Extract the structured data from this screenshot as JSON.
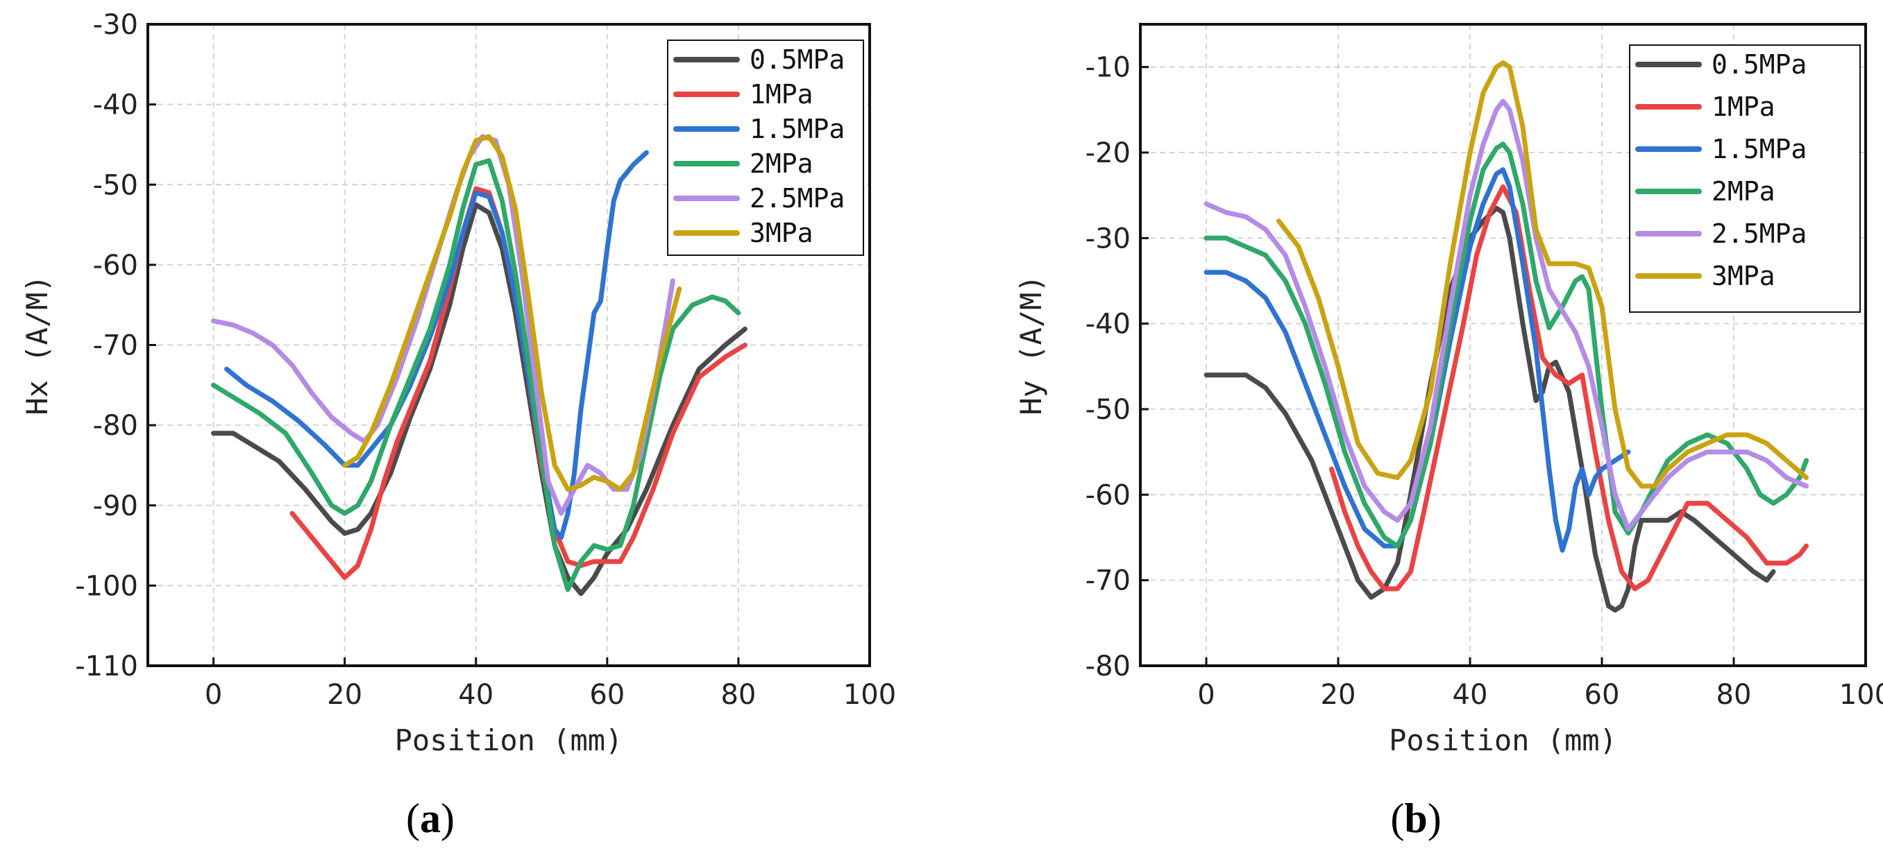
{
  "colors": {
    "0.5MPa": "#4a4a4a",
    "1MPa": "#ea4343",
    "1.5MPa": "#2f73d2",
    "2MPa": "#2fa86a",
    "2.5MPa": "#b48be6",
    "3MPa": "#c9a311"
  },
  "chart_data": [
    {
      "type": "line",
      "panel": "(a)",
      "panel_paren_open": "(",
      "panel_letter": "a",
      "panel_paren_close": ")",
      "xlabel": "Position (mm)",
      "ylabel": "Hx (A/M)",
      "xlim": [
        -10,
        100
      ],
      "ylim": [
        -110,
        -30
      ],
      "xticks": [
        0,
        20,
        40,
        60,
        80,
        100
      ],
      "yticks": [
        -110,
        -100,
        -90,
        -80,
        -70,
        -60,
        -50,
        -40,
        -30
      ],
      "legend_position": "top-right",
      "series": [
        {
          "name": "0.5MPa",
          "color": "#4a4a4a",
          "x": [
            0,
            3,
            6,
            10,
            14,
            18,
            20,
            22,
            24,
            27,
            30,
            33,
            36,
            38,
            40,
            42,
            44,
            46,
            48,
            50,
            52,
            54,
            56,
            58,
            60,
            63,
            66,
            70,
            74,
            78,
            81
          ],
          "y": [
            -81,
            -81,
            -82.5,
            -84.5,
            -88,
            -92,
            -93.5,
            -93,
            -91,
            -86,
            -79,
            -73,
            -65,
            -58,
            -52.5,
            -53.5,
            -58,
            -66,
            -76,
            -86,
            -95,
            -99,
            -101,
            -99,
            -96,
            -93,
            -88,
            -80,
            -73,
            -70,
            -68
          ]
        },
        {
          "name": "1MPa",
          "color": "#ea4343",
          "x": [
            12,
            15,
            18,
            20,
            22,
            24,
            26,
            28,
            30,
            33,
            36,
            38,
            40,
            42,
            44,
            46,
            48,
            50,
            52,
            54,
            56,
            58,
            60,
            62,
            64,
            67,
            70,
            74,
            78,
            81
          ],
          "y": [
            -91,
            -94,
            -97,
            -99,
            -97.5,
            -93,
            -87,
            -82,
            -78,
            -72,
            -63,
            -56,
            -50.5,
            -51,
            -56,
            -64,
            -74,
            -85,
            -93,
            -97,
            -97.5,
            -97,
            -97,
            -97,
            -94,
            -88,
            -81,
            -74,
            -71.5,
            -70
          ]
        },
        {
          "name": "1.5MPa",
          "color": "#2f73d2",
          "x": [
            2,
            5,
            9,
            13,
            17,
            20,
            22,
            24,
            27,
            30,
            33,
            36,
            38,
            40,
            42,
            44,
            46,
            48,
            50,
            52,
            53,
            54,
            55,
            56,
            57,
            58,
            59,
            60,
            61,
            62,
            63,
            64,
            66
          ],
          "y": [
            -73,
            -75,
            -77,
            -79.5,
            -82.5,
            -85,
            -85,
            -83,
            -80,
            -75,
            -69,
            -62,
            -56,
            -51,
            -51.5,
            -56,
            -64,
            -74,
            -84,
            -93,
            -94,
            -91,
            -86,
            -78,
            -72,
            -66,
            -64.5,
            -58,
            -52,
            -49.5,
            -48.5,
            -47.5,
            -46
          ]
        },
        {
          "name": "2MPa",
          "color": "#2fa86a",
          "x": [
            0,
            3,
            7,
            11,
            15,
            18,
            20,
            22,
            24,
            27,
            30,
            33,
            36,
            38,
            40,
            42,
            44,
            46,
            48,
            50,
            52,
            54,
            56,
            58,
            60,
            62,
            64,
            66,
            68,
            70,
            73,
            76,
            78,
            80
          ],
          "y": [
            -75,
            -76.5,
            -78.5,
            -81,
            -86,
            -90,
            -91,
            -90,
            -87,
            -80,
            -74,
            -68,
            -60,
            -53,
            -47.5,
            -47,
            -52,
            -61,
            -72,
            -84,
            -95,
            -100.5,
            -97,
            -95,
            -95.5,
            -95,
            -90,
            -82,
            -74,
            -68,
            -65,
            -64,
            -64.5,
            -66
          ]
        },
        {
          "name": "2.5MPa",
          "color": "#b48be6",
          "x": [
            0,
            3,
            6,
            9,
            12,
            15,
            18,
            21,
            23,
            25,
            28,
            31,
            34,
            37,
            39,
            41,
            43,
            45,
            47,
            49,
            51,
            53,
            55,
            57,
            59,
            61,
            63,
            65,
            67,
            69,
            70
          ],
          "y": [
            -67,
            -67.5,
            -68.5,
            -70,
            -72.5,
            -76,
            -79,
            -81,
            -82,
            -80,
            -74,
            -67,
            -59,
            -51,
            -46.5,
            -44,
            -44.5,
            -50,
            -61,
            -74,
            -87,
            -91,
            -88,
            -85,
            -86,
            -88,
            -88,
            -84,
            -76,
            -67,
            -62
          ]
        },
        {
          "name": "3MPa",
          "color": "#c9a311",
          "x": [
            20,
            22,
            24,
            27,
            30,
            33,
            36,
            38,
            40,
            42,
            44,
            46,
            48,
            50,
            52,
            54,
            56,
            58,
            60,
            62,
            64,
            66,
            68,
            70,
            71
          ],
          "y": [
            -85,
            -84,
            -81,
            -75,
            -68,
            -61,
            -54,
            -48.5,
            -44.5,
            -44,
            -46.5,
            -53,
            -64,
            -76,
            -85,
            -88,
            -87.5,
            -86.5,
            -87,
            -88,
            -86,
            -79,
            -72,
            -66,
            -63
          ]
        }
      ]
    },
    {
      "type": "line",
      "panel": "(b)",
      "panel_paren_open": "(",
      "panel_letter": "b",
      "panel_paren_close": ")",
      "xlabel": "Position (mm)",
      "ylabel": "Hy (A/M)",
      "xlim": [
        -10,
        100
      ],
      "ylim": [
        -80,
        -5
      ],
      "xticks": [
        0,
        20,
        40,
        60,
        80,
        100
      ],
      "yticks": [
        -80,
        -70,
        -60,
        -50,
        -40,
        -30,
        -20,
        -10
      ],
      "legend_position": "top-right",
      "series": [
        {
          "name": "0.5MPa",
          "color": "#4a4a4a",
          "x": [
            0,
            3,
            6,
            9,
            12,
            16,
            20,
            23,
            25,
            27,
            29,
            31,
            34,
            37,
            40,
            42,
            44,
            45,
            46,
            48,
            50,
            51,
            52,
            53,
            55,
            57,
            59,
            61,
            62,
            63,
            64,
            65,
            66,
            68,
            70,
            72,
            74,
            77,
            80,
            83,
            85,
            86
          ],
          "y": [
            -46,
            -46,
            -46,
            -47.5,
            -50.5,
            -56,
            -64,
            -70,
            -72,
            -71,
            -68,
            -60,
            -47,
            -36,
            -30,
            -28,
            -26.5,
            -27,
            -30,
            -40,
            -49,
            -48,
            -45,
            -44.5,
            -48,
            -57,
            -67,
            -73,
            -73.5,
            -73,
            -71,
            -66,
            -63,
            -63,
            -63,
            -62,
            -63,
            -65,
            -67,
            -69,
            -70,
            -69
          ]
        },
        {
          "name": "1MPa",
          "color": "#ea4343",
          "x": [
            19,
            21,
            23,
            25,
            27,
            29,
            31,
            33,
            36,
            39,
            41,
            43,
            45,
            47,
            49,
            51,
            53,
            55,
            57,
            59,
            61,
            63,
            65,
            67,
            69,
            71,
            73,
            76,
            79,
            82,
            85,
            88,
            90,
            91
          ],
          "y": [
            -57,
            -62,
            -66,
            -69,
            -71,
            -71,
            -69,
            -62,
            -51,
            -40,
            -32,
            -27,
            -24,
            -27,
            -36,
            -44,
            -46,
            -47,
            -46,
            -55,
            -63,
            -69,
            -71,
            -70,
            -67,
            -64,
            -61,
            -61,
            -63,
            -65,
            -68,
            -68,
            -67,
            -66
          ]
        },
        {
          "name": "1.5MPa",
          "color": "#2f73d2",
          "x": [
            0,
            3,
            6,
            9,
            12,
            15,
            18,
            21,
            24,
            27,
            29,
            31,
            34,
            37,
            40,
            42,
            44,
            45,
            46,
            48,
            50,
            51,
            52,
            53,
            54,
            55,
            56,
            57,
            58,
            59,
            60,
            62,
            64
          ],
          "y": [
            -34,
            -34,
            -35,
            -37,
            -41,
            -47,
            -53,
            -59,
            -64,
            -66,
            -66,
            -63,
            -54,
            -42,
            -31,
            -26,
            -22.5,
            -22,
            -24,
            -33,
            -43,
            -50,
            -57,
            -63,
            -66.5,
            -64,
            -59,
            -57,
            -60,
            -58,
            -57,
            -56,
            -55
          ]
        },
        {
          "name": "2MPa",
          "color": "#2fa86a",
          "x": [
            0,
            3,
            6,
            9,
            12,
            15,
            18,
            21,
            24,
            27,
            29,
            31,
            34,
            37,
            40,
            42,
            44,
            45,
            46,
            48,
            50,
            52,
            54,
            56,
            57,
            58,
            60,
            62,
            64,
            66,
            68,
            70,
            73,
            76,
            79,
            82,
            84,
            86,
            88,
            90,
            91
          ],
          "y": [
            -30,
            -30,
            -31,
            -32,
            -35,
            -40,
            -47,
            -55,
            -61,
            -65,
            -66,
            -63,
            -54,
            -40,
            -28,
            -22,
            -19.5,
            -19,
            -20,
            -26,
            -35,
            -40.5,
            -38,
            -35,
            -34.5,
            -36,
            -50,
            -62,
            -64.5,
            -62,
            -59,
            -56,
            -54,
            -53,
            -54,
            -57,
            -60,
            -61,
            -60,
            -58,
            -56
          ]
        },
        {
          "name": "2.5MPa",
          "color": "#b48be6",
          "x": [
            0,
            3,
            6,
            9,
            12,
            15,
            18,
            21,
            24,
            27,
            29,
            31,
            34,
            37,
            40,
            42,
            44,
            45,
            46,
            48,
            50,
            52,
            54,
            56,
            58,
            60,
            62,
            64,
            66,
            68,
            70,
            73,
            76,
            79,
            82,
            85,
            88,
            91
          ],
          "y": [
            -26,
            -27,
            -27.5,
            -29,
            -32,
            -38,
            -45,
            -53,
            -59,
            -62,
            -63,
            -61,
            -52,
            -38,
            -25,
            -19,
            -15,
            -14,
            -15,
            -21,
            -30,
            -36,
            -38.5,
            -41,
            -45,
            -52,
            -60,
            -64,
            -62,
            -60,
            -58,
            -56,
            -55,
            -55,
            -55,
            -56,
            -58,
            -59
          ]
        },
        {
          "name": "3MPa",
          "color": "#c9a311",
          "x": [
            11,
            14,
            17,
            20,
            23,
            26,
            29,
            31,
            34,
            37,
            40,
            42,
            44,
            45,
            46,
            48,
            50,
            52,
            54,
            56,
            58,
            60,
            62,
            64,
            66,
            68,
            70,
            73,
            76,
            79,
            82,
            85,
            88,
            91
          ],
          "y": [
            -28,
            -31,
            -37,
            -45,
            -54,
            -57.5,
            -58,
            -56,
            -48,
            -33,
            -20,
            -13,
            -10,
            -9.5,
            -10,
            -17,
            -29,
            -33,
            -33,
            -33,
            -33.5,
            -38,
            -50,
            -57,
            -59,
            -59,
            -57,
            -55,
            -54,
            -53,
            -53,
            -54,
            -56,
            -58
          ]
        }
      ]
    }
  ]
}
